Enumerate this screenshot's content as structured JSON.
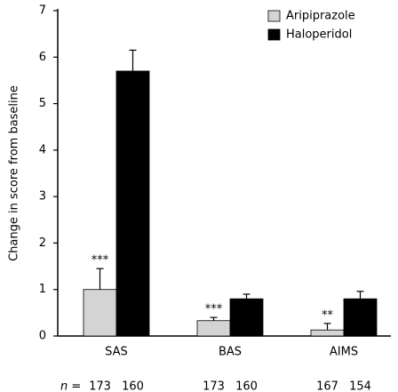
{
  "chart_data": {
    "type": "bar",
    "y_label": "Change in score from baseline",
    "categories": [
      "SAS",
      "BAS",
      "AIMS"
    ],
    "series": [
      {
        "name": "Aripiprazole",
        "color": "#d4d4d4",
        "values": [
          1.0,
          0.33,
          0.13
        ],
        "errors": [
          0.45,
          0.07,
          0.14
        ],
        "annotations": [
          "***",
          "***",
          "**"
        ],
        "n": [
          173,
          173,
          167
        ]
      },
      {
        "name": "Haloperidol",
        "color": "#000000",
        "values": [
          5.7,
          0.8,
          0.8
        ],
        "errors": [
          0.45,
          0.1,
          0.16
        ],
        "n": [
          160,
          160,
          154
        ]
      }
    ],
    "n_label": "n =",
    "ylim": [
      0,
      7
    ],
    "yticks": [
      0,
      1,
      2,
      3,
      4,
      5,
      6,
      7
    ],
    "grid": false,
    "legend": "upper right"
  }
}
